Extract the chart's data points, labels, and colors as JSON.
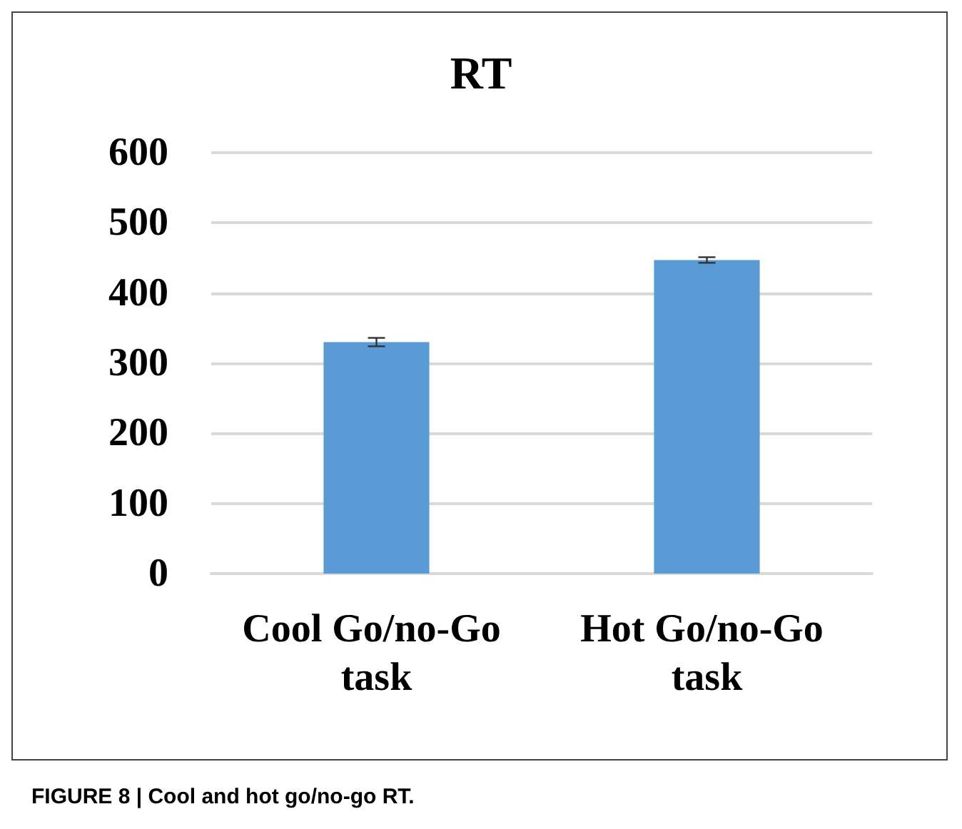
{
  "chart_data": {
    "type": "bar",
    "title": "RT",
    "categories": [
      "Cool Go/no-Go task",
      "Hot Go/no-Go task"
    ],
    "values": [
      330,
      447
    ],
    "errors": [
      6,
      4
    ],
    "color": "#5b9bd5",
    "ylim": [
      0,
      600
    ],
    "yticks": [
      0,
      100,
      200,
      300,
      400,
      500,
      600
    ],
    "grid": "y",
    "annotations": [
      "FIGURE 8 | Cool and hot go/no-go RT."
    ]
  }
}
